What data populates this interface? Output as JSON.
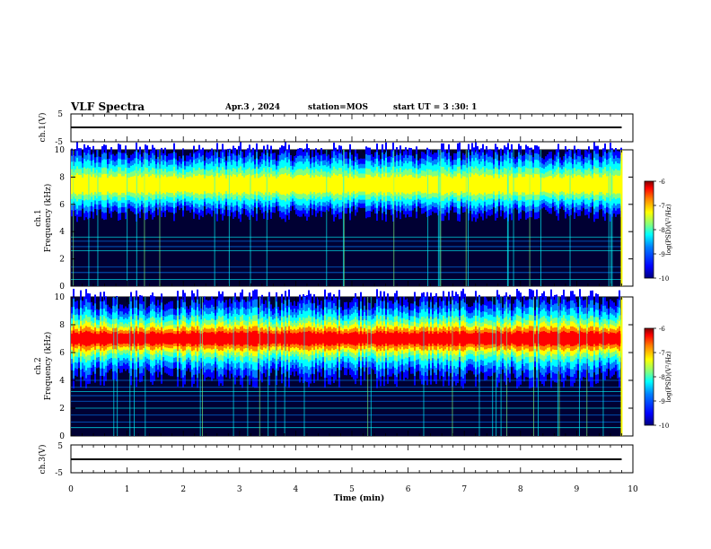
{
  "header": {
    "title": "VLF Spectra",
    "date": "Apr.3 , 2024",
    "station": "station=MOS",
    "start_ut": "start UT = 3 :30: 1"
  },
  "chart_data": [
    {
      "type": "line",
      "panel": "ch1-waveform",
      "ylabel": "ch.1(V)",
      "ylim": [
        -5,
        5
      ],
      "yticks": [
        "5",
        "-5"
      ],
      "xlim": [
        0,
        10
      ],
      "series": [
        {
          "values": [
            -0.1,
            0.1
          ]
        }
      ]
    },
    {
      "type": "heatmap",
      "panel": "ch1-spectrogram",
      "ylabel_line1": "ch.1",
      "ylabel_line2": "Frequency (kHz)",
      "ylim": [
        0,
        10
      ],
      "yticks": [
        "0",
        "2",
        "4",
        "6",
        "8",
        "10"
      ],
      "xlim": [
        0,
        10
      ],
      "data_end_min": 9.8,
      "emission_band_khz": [
        5.2,
        9.6
      ],
      "colorbar": {
        "label": "log(PSD)(V²/Hz)",
        "ticks": [
          "-6",
          "-7",
          "-8",
          "-9",
          "-10"
        ],
        "range": [
          -10,
          -6
        ]
      }
    },
    {
      "type": "heatmap",
      "panel": "ch2-spectrogram",
      "ylabel_line1": "ch.2",
      "ylabel_line2": "Frequency (kHz)",
      "ylim": [
        0,
        10
      ],
      "yticks": [
        "0",
        "2",
        "4",
        "6",
        "8",
        "10"
      ],
      "xlim": [
        0,
        10
      ],
      "data_end_min": 9.8,
      "emission_band_khz": [
        4.5,
        9.5
      ],
      "colorbar": {
        "label": "log(PSD)(V²/Hz)",
        "ticks": [
          "-6",
          "-7",
          "-8",
          "-9",
          "-10"
        ],
        "range": [
          -10,
          -6
        ]
      }
    },
    {
      "type": "line",
      "panel": "ch3-waveform",
      "ylabel": "ch.3(V)",
      "ylim": [
        -5,
        5
      ],
      "yticks": [
        "5",
        "-5"
      ],
      "xlim": [
        0,
        10
      ],
      "xlabel": "Time (min)",
      "xticks": [
        "0",
        "1",
        "2",
        "3",
        "4",
        "5",
        "6",
        "7",
        "8",
        "9",
        "10"
      ],
      "series": [
        {
          "values": [
            -0.1,
            0.1
          ]
        }
      ]
    }
  ],
  "colors": {
    "jet": [
      "#000080",
      "#0000ff",
      "#0080ff",
      "#00ffff",
      "#80ff80",
      "#ffff00",
      "#ff8000",
      "#ff0000",
      "#800000"
    ],
    "background": "#000033",
    "frame": "#000000"
  }
}
